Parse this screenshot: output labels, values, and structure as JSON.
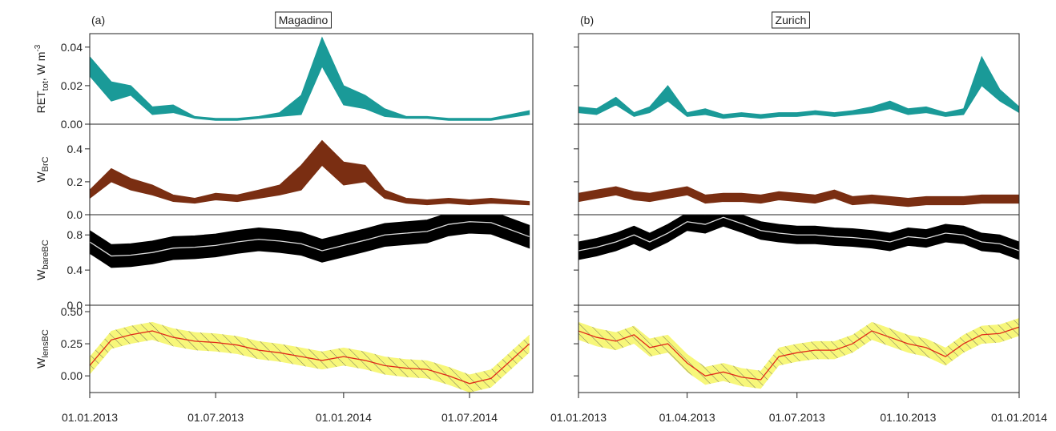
{
  "chart_data": [
    {
      "type": "band",
      "label": "(a)",
      "title": "Magadino",
      "x": [
        "2013-01-01",
        "2013-02-01",
        "2013-03-01",
        "2013-04-01",
        "2013-05-01",
        "2013-06-01",
        "2013-07-01",
        "2013-08-01",
        "2013-09-01",
        "2013-10-01",
        "2013-11-01",
        "2013-12-01",
        "2014-01-01",
        "2014-02-01",
        "2014-03-01",
        "2014-04-01",
        "2014-05-01",
        "2014-06-01",
        "2014-07-01",
        "2014-08-01",
        "2014-09-25"
      ],
      "xlim": [
        "2013-01-01",
        "2014-09-30"
      ],
      "xticks": [
        {
          "value": "2013-01-01",
          "label": "01.01.2013"
        },
        {
          "value": "2013-07-01",
          "label": "01.07.2013"
        },
        {
          "value": "2014-01-01",
          "label": "01.01.2014"
        },
        {
          "value": "2014-07-01",
          "label": "01.07.2014"
        }
      ],
      "ytick_labels": true,
      "panels": [
        {
          "ylabel": {
            "text": "RET",
            "sub": "tot",
            "post": ", W m",
            "sup": "-3"
          },
          "color": "#1a9a98",
          "ylim": [
            0,
            0.047
          ],
          "yticks": [
            {
              "value": 0,
              "label": "0.00"
            },
            {
              "value": 0.02,
              "label": "0.02"
            },
            {
              "value": 0.04,
              "label": "0.04"
            }
          ],
          "lower": [
            0.025,
            0.012,
            0.015,
            0.005,
            0.006,
            0.003,
            0.002,
            0.002,
            0.003,
            0.004,
            0.005,
            0.03,
            0.01,
            0.008,
            0.004,
            0.003,
            0.003,
            0.002,
            0.002,
            0.002,
            0.005
          ],
          "upper": [
            0.035,
            0.022,
            0.02,
            0.009,
            0.01,
            0.004,
            0.003,
            0.003,
            0.004,
            0.006,
            0.015,
            0.045,
            0.02,
            0.015,
            0.008,
            0.004,
            0.004,
            0.003,
            0.003,
            0.003,
            0.007
          ]
        },
        {
          "ylabel": {
            "text": "W",
            "sub": "BrC"
          },
          "color": "#7a2e12",
          "ylim": [
            0,
            0.55
          ],
          "yticks": [
            {
              "value": 0,
              "label": "0.0"
            },
            {
              "value": 0.2,
              "label": "0.2"
            },
            {
              "value": 0.4,
              "label": "0.4"
            }
          ],
          "lower": [
            0.1,
            0.2,
            0.15,
            0.12,
            0.08,
            0.07,
            0.09,
            0.08,
            0.1,
            0.12,
            0.15,
            0.3,
            0.18,
            0.2,
            0.1,
            0.07,
            0.06,
            0.07,
            0.06,
            0.07,
            0.06
          ],
          "upper": [
            0.15,
            0.28,
            0.22,
            0.18,
            0.12,
            0.1,
            0.13,
            0.12,
            0.15,
            0.18,
            0.3,
            0.45,
            0.32,
            0.3,
            0.15,
            0.1,
            0.09,
            0.1,
            0.09,
            0.1,
            0.08
          ]
        },
        {
          "ylabel": {
            "text": "W",
            "sub": "bareBC"
          },
          "color": "#000000",
          "line_color": "#dddddd",
          "ylim": [
            0,
            1.03
          ],
          "yticks": [
            {
              "value": 0,
              "label": "0.0"
            },
            {
              "value": 0.4,
              "label": "0.4"
            },
            {
              "value": 0.8,
              "label": "0.8"
            }
          ],
          "lower": [
            0.59,
            0.43,
            0.44,
            0.47,
            0.52,
            0.53,
            0.55,
            0.59,
            0.62,
            0.6,
            0.57,
            0.49,
            0.55,
            0.61,
            0.67,
            0.69,
            0.71,
            0.79,
            0.82,
            0.81,
            0.65
          ],
          "upper": [
            0.85,
            0.69,
            0.7,
            0.73,
            0.78,
            0.79,
            0.81,
            0.85,
            0.88,
            0.86,
            0.83,
            0.75,
            0.81,
            0.87,
            0.93,
            0.95,
            0.97,
            1.05,
            1.08,
            1.07,
            0.91
          ],
          "center": [
            0.72,
            0.56,
            0.57,
            0.6,
            0.65,
            0.66,
            0.68,
            0.72,
            0.75,
            0.73,
            0.7,
            0.62,
            0.68,
            0.74,
            0.8,
            0.82,
            0.84,
            0.92,
            0.95,
            0.94,
            0.78
          ]
        },
        {
          "ylabel": {
            "text": "W",
            "sub": "lensBC"
          },
          "color": "#f7f77a",
          "hatch": true,
          "line_color": "#e02a1a",
          "ylim": [
            -0.13,
            0.55
          ],
          "yticks": [
            {
              "value": 0,
              "label": "0.00"
            },
            {
              "value": 0.25,
              "label": "0.25"
            },
            {
              "value": 0.5,
              "label": "0.50"
            }
          ],
          "lower": [
            0.01,
            0.21,
            0.25,
            0.28,
            0.23,
            0.2,
            0.19,
            0.17,
            0.13,
            0.11,
            0.08,
            0.05,
            0.08,
            0.05,
            0.01,
            -0.01,
            -0.02,
            -0.07,
            -0.13,
            -0.09,
            0.18
          ],
          "upper": [
            0.15,
            0.35,
            0.39,
            0.42,
            0.37,
            0.34,
            0.33,
            0.31,
            0.27,
            0.25,
            0.22,
            0.19,
            0.22,
            0.19,
            0.15,
            0.13,
            0.12,
            0.07,
            0.01,
            0.05,
            0.32
          ],
          "center": [
            0.08,
            0.28,
            0.32,
            0.35,
            0.3,
            0.27,
            0.26,
            0.24,
            0.2,
            0.18,
            0.15,
            0.12,
            0.15,
            0.12,
            0.08,
            0.06,
            0.05,
            0.0,
            -0.06,
            -0.02,
            0.25
          ]
        }
      ]
    },
    {
      "type": "band",
      "label": "(b)",
      "title": "Zurich",
      "x": [
        "2013-01-01",
        "2013-01-16",
        "2013-02-01",
        "2013-02-16",
        "2013-03-01",
        "2013-03-16",
        "2013-04-01",
        "2013-04-16",
        "2013-05-01",
        "2013-05-16",
        "2013-06-01",
        "2013-06-16",
        "2013-07-01",
        "2013-07-16",
        "2013-08-01",
        "2013-08-16",
        "2013-09-01",
        "2013-09-16",
        "2013-10-01",
        "2013-10-16",
        "2013-11-01",
        "2013-11-16",
        "2013-12-01",
        "2013-12-16",
        "2014-01-01"
      ],
      "xlim": [
        "2013-01-01",
        "2014-01-01"
      ],
      "xticks": [
        {
          "value": "2013-01-01",
          "label": "01.01.2013"
        },
        {
          "value": "2013-04-01",
          "label": "01.04.2013"
        },
        {
          "value": "2013-07-01",
          "label": "01.07.2013"
        },
        {
          "value": "2013-10-01",
          "label": "01.10.2013"
        },
        {
          "value": "2014-01-01",
          "label": "01.01.2014"
        }
      ],
      "ytick_labels": false,
      "panels": [
        {
          "color": "#1a9a98",
          "ylim": [
            0,
            0.047
          ],
          "yticks": [
            0,
            0.02,
            0.04
          ],
          "lower": [
            0.006,
            0.005,
            0.01,
            0.004,
            0.006,
            0.012,
            0.004,
            0.005,
            0.003,
            0.004,
            0.003,
            0.004,
            0.004,
            0.005,
            0.004,
            0.005,
            0.006,
            0.008,
            0.005,
            0.006,
            0.004,
            0.005,
            0.02,
            0.012,
            0.006
          ],
          "upper": [
            0.009,
            0.008,
            0.014,
            0.006,
            0.009,
            0.02,
            0.006,
            0.008,
            0.005,
            0.006,
            0.005,
            0.006,
            0.006,
            0.007,
            0.006,
            0.007,
            0.009,
            0.012,
            0.008,
            0.009,
            0.006,
            0.008,
            0.035,
            0.018,
            0.009
          ]
        },
        {
          "color": "#7a2e12",
          "ylim": [
            0,
            0.55
          ],
          "yticks": [
            0,
            0.2,
            0.4
          ],
          "lower": [
            0.08,
            0.1,
            0.12,
            0.09,
            0.08,
            0.1,
            0.12,
            0.07,
            0.08,
            0.08,
            0.07,
            0.09,
            0.08,
            0.07,
            0.1,
            0.06,
            0.07,
            0.06,
            0.05,
            0.06,
            0.06,
            0.06,
            0.07,
            0.07,
            0.07
          ],
          "upper": [
            0.13,
            0.15,
            0.17,
            0.14,
            0.13,
            0.15,
            0.17,
            0.12,
            0.13,
            0.13,
            0.12,
            0.14,
            0.13,
            0.12,
            0.15,
            0.11,
            0.12,
            0.11,
            0.1,
            0.11,
            0.11,
            0.11,
            0.12,
            0.12,
            0.12
          ]
        },
        {
          "color": "#000000",
          "line_color": "#dddddd",
          "ylim": [
            0,
            1.03
          ],
          "yticks": [
            0,
            0.4,
            0.8
          ],
          "lower": [
            0.52,
            0.56,
            0.62,
            0.7,
            0.62,
            0.72,
            0.85,
            0.82,
            0.9,
            0.83,
            0.75,
            0.72,
            0.7,
            0.7,
            0.68,
            0.67,
            0.65,
            0.62,
            0.68,
            0.66,
            0.72,
            0.7,
            0.62,
            0.6,
            0.52
          ],
          "upper": [
            0.72,
            0.76,
            0.82,
            0.9,
            0.82,
            0.92,
            1.05,
            1.02,
            1.1,
            1.03,
            0.95,
            0.92,
            0.9,
            0.9,
            0.88,
            0.87,
            0.85,
            0.82,
            0.88,
            0.86,
            0.92,
            0.9,
            0.82,
            0.8,
            0.72
          ],
          "center": [
            0.62,
            0.66,
            0.72,
            0.8,
            0.72,
            0.82,
            0.95,
            0.92,
            1.0,
            0.93,
            0.85,
            0.82,
            0.8,
            0.8,
            0.78,
            0.77,
            0.75,
            0.72,
            0.78,
            0.76,
            0.82,
            0.8,
            0.72,
            0.7,
            0.62
          ]
        },
        {
          "color": "#f7f77a",
          "hatch": true,
          "line_color": "#e02a1a",
          "ylim": [
            -0.13,
            0.55
          ],
          "yticks": [
            0,
            0.25,
            0.5
          ],
          "lower": [
            0.28,
            0.23,
            0.2,
            0.25,
            0.15,
            0.18,
            0.03,
            -0.07,
            -0.04,
            -0.08,
            -0.1,
            0.08,
            0.11,
            0.13,
            0.13,
            0.18,
            0.28,
            0.23,
            0.18,
            0.15,
            0.08,
            0.18,
            0.25,
            0.26,
            0.31
          ],
          "upper": [
            0.42,
            0.37,
            0.34,
            0.39,
            0.29,
            0.32,
            0.17,
            0.07,
            0.1,
            0.06,
            0.04,
            0.22,
            0.25,
            0.27,
            0.27,
            0.32,
            0.42,
            0.37,
            0.32,
            0.29,
            0.22,
            0.32,
            0.39,
            0.4,
            0.45
          ],
          "center": [
            0.35,
            0.3,
            0.27,
            0.32,
            0.22,
            0.25,
            0.1,
            0.0,
            0.03,
            -0.01,
            -0.03,
            0.15,
            0.18,
            0.2,
            0.2,
            0.25,
            0.35,
            0.3,
            0.25,
            0.22,
            0.15,
            0.25,
            0.32,
            0.33,
            0.38
          ]
        }
      ]
    }
  ]
}
